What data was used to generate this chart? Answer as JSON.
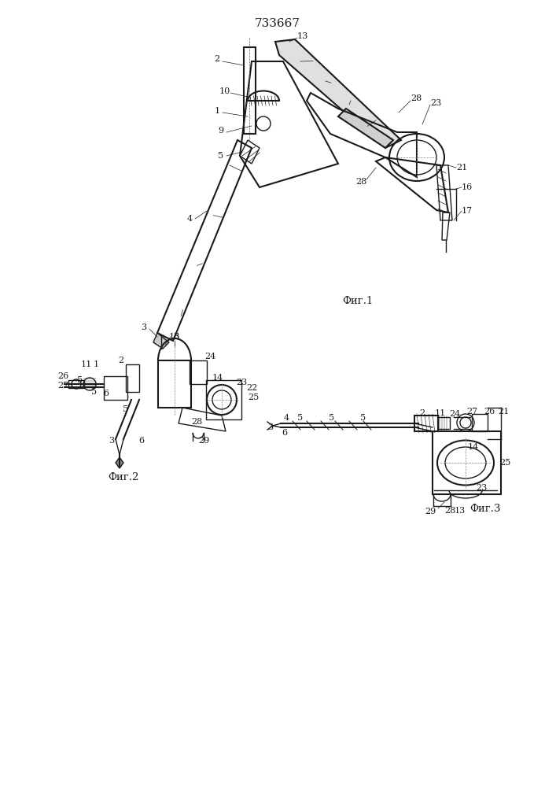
{
  "title": "733667",
  "fig1_label": "Фиг.1",
  "fig2_label": "Фиг.2",
  "fig3_label": "Фиг.3",
  "bg_color": "#ffffff",
  "line_color": "#1a1a1a",
  "title_fontsize": 11,
  "label_fontsize": 9,
  "fig_width": 7.07,
  "fig_height": 10.0,
  "dpi": 100
}
